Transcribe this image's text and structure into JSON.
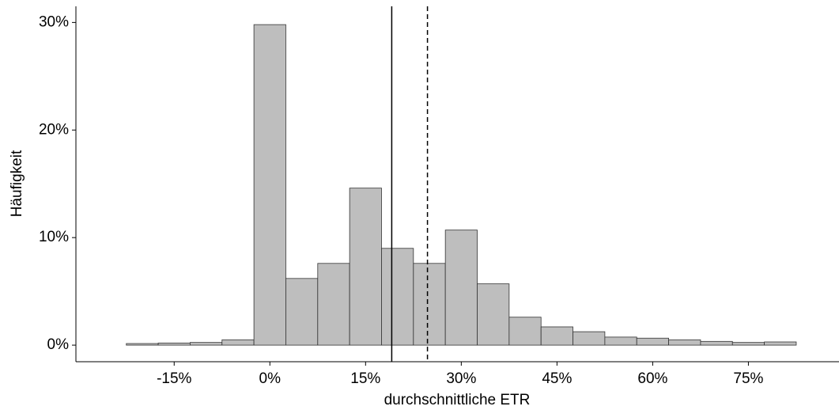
{
  "chart_data": {
    "type": "histogram",
    "x_label": "durchschnittliche ETR",
    "y_label": "Häufigkeit",
    "bins": [
      -22.5,
      -17.5,
      -12.5,
      -7.5,
      -2.5,
      2.5,
      7.5,
      12.5,
      17.5,
      22.5,
      27.5,
      32.5,
      37.5,
      42.5,
      47.5,
      52.5,
      57.5,
      62.5,
      67.5,
      72.5,
      77.5,
      82.5
    ],
    "values": [
      0.15,
      0.2,
      0.25,
      0.5,
      29.8,
      6.2,
      7.6,
      14.6,
      9.0,
      7.6,
      10.7,
      5.7,
      2.6,
      1.7,
      1.25,
      0.75,
      0.65,
      0.5,
      0.35,
      0.25,
      0.3
    ],
    "color": "#bebebe",
    "edge_color": "#333333",
    "vlines": [
      {
        "value": 19.1,
        "style": "solid"
      },
      {
        "value": 24.7,
        "style": "dashed"
      }
    ],
    "xlim": [
      -30.4,
      89.2
    ],
    "ylim": [
      -1.54,
      31.5
    ],
    "xticks": [
      {
        "value": -15,
        "label": "-15%"
      },
      {
        "value": 0,
        "label": "0%"
      },
      {
        "value": 15,
        "label": "15%"
      },
      {
        "value": 30,
        "label": "30%"
      },
      {
        "value": 45,
        "label": "45%"
      },
      {
        "value": 60,
        "label": "60%"
      },
      {
        "value": 75,
        "label": "75%"
      }
    ],
    "yticks": [
      {
        "value": 0,
        "label": "0%"
      },
      {
        "value": 10,
        "label": "10%"
      },
      {
        "value": 20,
        "label": "20%"
      },
      {
        "value": 30,
        "label": "30%"
      }
    ],
    "grid": false
  }
}
